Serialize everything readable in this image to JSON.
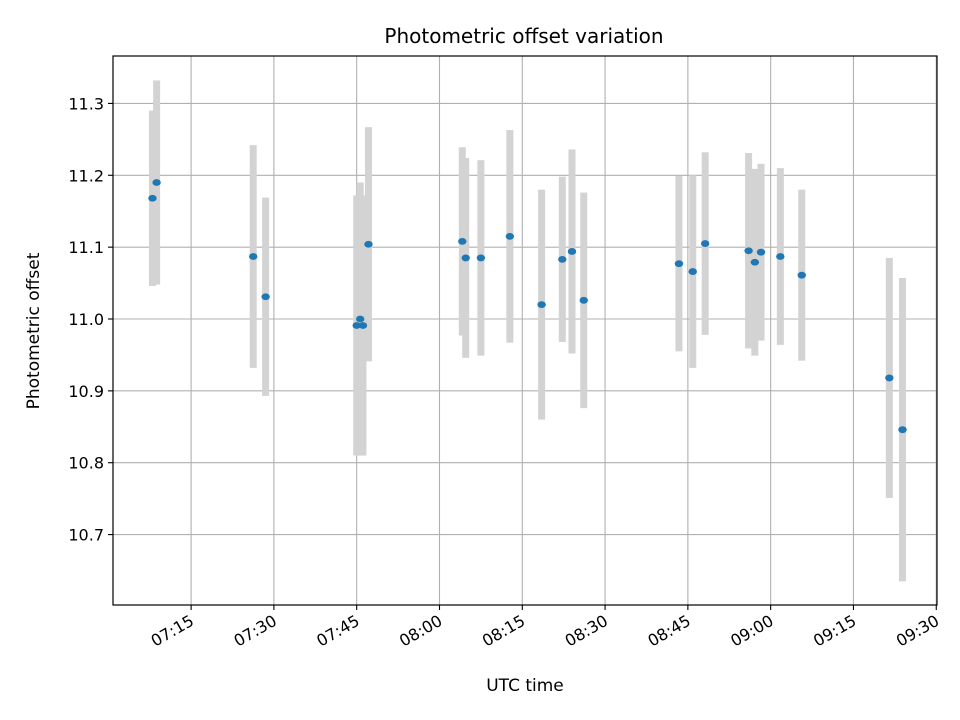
{
  "chart_data": {
    "type": "scatter",
    "title": "Photometric offset variation",
    "xlabel": "UTC time",
    "ylabel": "Photometric offset",
    "x_ticks": [
      "07:15",
      "07:30",
      "07:45",
      "08:00",
      "08:15",
      "08:30",
      "08:45",
      "09:00",
      "09:15",
      "09:30"
    ],
    "y_ticks": [
      10.7,
      10.8,
      10.9,
      11.0,
      11.1,
      11.2,
      11.3
    ],
    "xlim": [
      "07:00:51",
      "09:30:08"
    ],
    "ylim": [
      10.602,
      11.366
    ],
    "grid": true,
    "point_color": "#1f77b4",
    "errorbar_color": "#d3d3d3",
    "points": [
      {
        "x": "07:08:00",
        "y": 11.168,
        "yerr": 0.122
      },
      {
        "x": "07:08:45",
        "y": 11.19,
        "yerr": 0.142
      },
      {
        "x": "07:26:15",
        "y": 11.087,
        "yerr": 0.155
      },
      {
        "x": "07:28:30",
        "y": 11.031,
        "yerr": 0.138
      },
      {
        "x": "07:45:00",
        "y": 10.991,
        "yerr": 0.181
      },
      {
        "x": "07:45:38",
        "y": 11.0,
        "yerr": 0.19
      },
      {
        "x": "07:46:08",
        "y": 10.991,
        "yerr": 0.181
      },
      {
        "x": "07:47:08",
        "y": 11.104,
        "yerr": 0.163
      },
      {
        "x": "08:04:08",
        "y": 11.108,
        "yerr": 0.131
      },
      {
        "x": "08:04:45",
        "y": 11.085,
        "yerr": 0.139
      },
      {
        "x": "08:07:30",
        "y": 11.085,
        "yerr": 0.136
      },
      {
        "x": "08:12:45",
        "y": 11.115,
        "yerr": 0.148
      },
      {
        "x": "08:18:30",
        "y": 11.02,
        "yerr": 0.16
      },
      {
        "x": "08:22:15",
        "y": 11.083,
        "yerr": 0.115
      },
      {
        "x": "08:24:00",
        "y": 11.094,
        "yerr": 0.142
      },
      {
        "x": "08:26:08",
        "y": 11.026,
        "yerr": 0.15
      },
      {
        "x": "08:43:23",
        "y": 11.077,
        "yerr": 0.122
      },
      {
        "x": "08:45:53",
        "y": 11.066,
        "yerr": 0.134
      },
      {
        "x": "08:48:08",
        "y": 11.105,
        "yerr": 0.127
      },
      {
        "x": "08:56:00",
        "y": 11.095,
        "yerr": 0.136
      },
      {
        "x": "08:57:08",
        "y": 11.079,
        "yerr": 0.13
      },
      {
        "x": "08:58:15",
        "y": 11.093,
        "yerr": 0.123
      },
      {
        "x": "09:01:45",
        "y": 11.087,
        "yerr": 0.123
      },
      {
        "x": "09:05:38",
        "y": 11.061,
        "yerr": 0.119
      },
      {
        "x": "09:21:30",
        "y": 10.918,
        "yerr": 0.167
      },
      {
        "x": "09:23:53",
        "y": 10.846,
        "yerr": 0.211
      }
    ]
  }
}
